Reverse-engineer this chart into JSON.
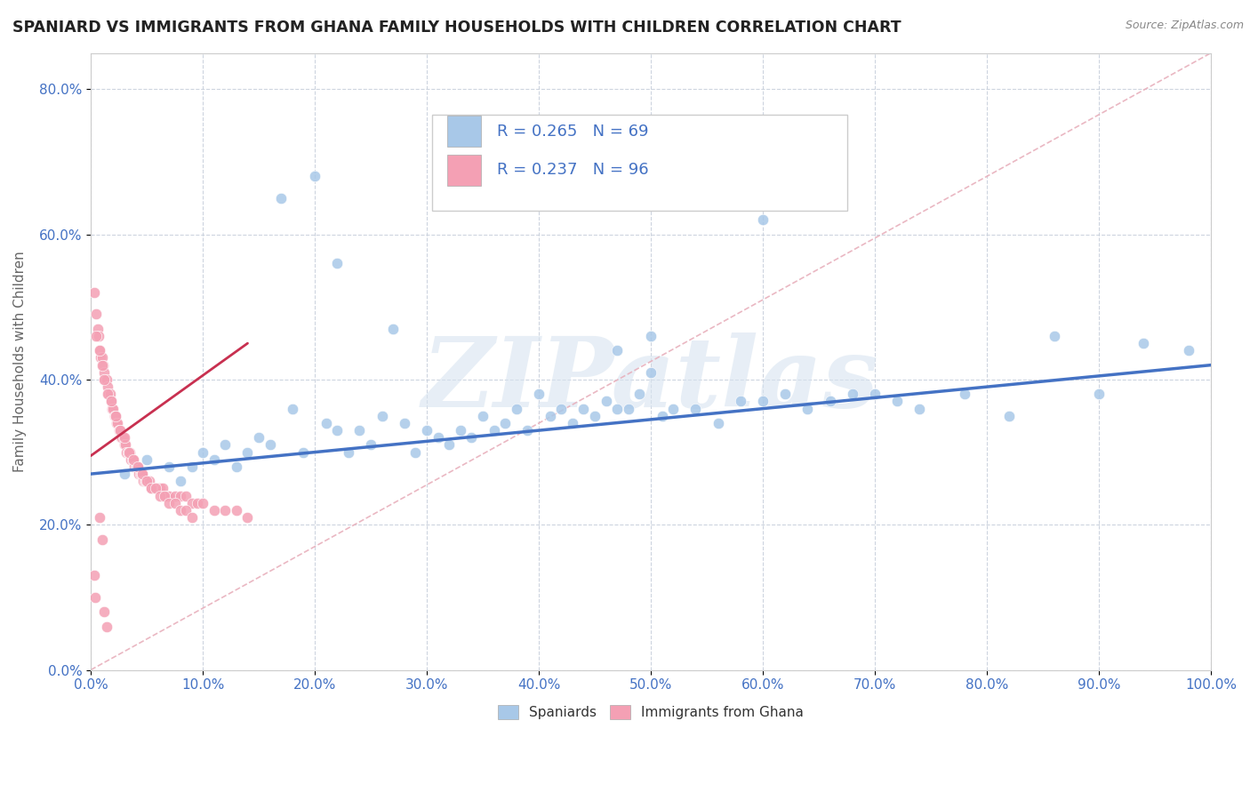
{
  "title": "SPANIARD VS IMMIGRANTS FROM GHANA FAMILY HOUSEHOLDS WITH CHILDREN CORRELATION CHART",
  "source": "Source: ZipAtlas.com",
  "ylabel": "Family Households with Children",
  "watermark": "ZIPatlas",
  "legend_blue_R": "R = 0.265",
  "legend_blue_N": "N = 69",
  "legend_pink_R": "R = 0.237",
  "legend_pink_N": "N = 96",
  "blue_color": "#a8c8e8",
  "blue_line_color": "#4472c4",
  "pink_color": "#f4a0b4",
  "pink_line_color": "#e06080",
  "axis_color": "#4472c4",
  "grid_color": "#c8d0dc",
  "xlim": [
    0.0,
    1.0
  ],
  "ylim": [
    0.0,
    0.85
  ],
  "xticks": [
    0.0,
    0.1,
    0.2,
    0.3,
    0.4,
    0.5,
    0.6,
    0.7,
    0.8,
    0.9,
    1.0
  ],
  "yticks": [
    0.0,
    0.2,
    0.4,
    0.6,
    0.8
  ],
  "blue_scatter_x": [
    0.03,
    0.05,
    0.07,
    0.08,
    0.09,
    0.1,
    0.11,
    0.12,
    0.13,
    0.14,
    0.15,
    0.16,
    0.17,
    0.18,
    0.19,
    0.2,
    0.21,
    0.22,
    0.23,
    0.24,
    0.25,
    0.26,
    0.28,
    0.29,
    0.3,
    0.31,
    0.32,
    0.33,
    0.34,
    0.35,
    0.36,
    0.37,
    0.38,
    0.39,
    0.4,
    0.41,
    0.42,
    0.43,
    0.44,
    0.45,
    0.46,
    0.47,
    0.48,
    0.49,
    0.5,
    0.51,
    0.52,
    0.54,
    0.56,
    0.58,
    0.6,
    0.62,
    0.64,
    0.66,
    0.68,
    0.7,
    0.72,
    0.74,
    0.78,
    0.82,
    0.86,
    0.9,
    0.94,
    0.98,
    0.22,
    0.27,
    0.47,
    0.5,
    0.6
  ],
  "blue_scatter_y": [
    0.27,
    0.29,
    0.28,
    0.26,
    0.28,
    0.3,
    0.29,
    0.31,
    0.28,
    0.3,
    0.32,
    0.31,
    0.65,
    0.36,
    0.3,
    0.68,
    0.34,
    0.33,
    0.3,
    0.33,
    0.31,
    0.35,
    0.34,
    0.3,
    0.33,
    0.32,
    0.31,
    0.33,
    0.32,
    0.35,
    0.33,
    0.34,
    0.36,
    0.33,
    0.38,
    0.35,
    0.36,
    0.34,
    0.36,
    0.35,
    0.37,
    0.36,
    0.36,
    0.38,
    0.46,
    0.35,
    0.36,
    0.36,
    0.34,
    0.37,
    0.37,
    0.38,
    0.36,
    0.37,
    0.38,
    0.38,
    0.37,
    0.36,
    0.38,
    0.35,
    0.46,
    0.38,
    0.45,
    0.44,
    0.56,
    0.47,
    0.44,
    0.41,
    0.62
  ],
  "pink_scatter_x": [
    0.003,
    0.005,
    0.006,
    0.007,
    0.008,
    0.009,
    0.01,
    0.011,
    0.012,
    0.013,
    0.014,
    0.015,
    0.016,
    0.017,
    0.018,
    0.019,
    0.02,
    0.021,
    0.022,
    0.023,
    0.024,
    0.025,
    0.026,
    0.027,
    0.028,
    0.029,
    0.03,
    0.031,
    0.032,
    0.033,
    0.034,
    0.035,
    0.036,
    0.037,
    0.038,
    0.039,
    0.04,
    0.041,
    0.042,
    0.043,
    0.044,
    0.045,
    0.046,
    0.047,
    0.048,
    0.049,
    0.05,
    0.052,
    0.054,
    0.056,
    0.058,
    0.06,
    0.062,
    0.064,
    0.066,
    0.068,
    0.07,
    0.075,
    0.08,
    0.085,
    0.09,
    0.095,
    0.1,
    0.11,
    0.12,
    0.13,
    0.14,
    0.005,
    0.008,
    0.01,
    0.012,
    0.015,
    0.018,
    0.022,
    0.026,
    0.03,
    0.034,
    0.038,
    0.042,
    0.046,
    0.05,
    0.054,
    0.058,
    0.062,
    0.066,
    0.07,
    0.075,
    0.08,
    0.085,
    0.09,
    0.003,
    0.004,
    0.008,
    0.01,
    0.012,
    0.014
  ],
  "pink_scatter_y": [
    0.52,
    0.49,
    0.47,
    0.46,
    0.44,
    0.43,
    0.43,
    0.42,
    0.41,
    0.4,
    0.4,
    0.39,
    0.38,
    0.38,
    0.37,
    0.36,
    0.36,
    0.35,
    0.35,
    0.34,
    0.34,
    0.33,
    0.33,
    0.32,
    0.32,
    0.32,
    0.31,
    0.31,
    0.3,
    0.3,
    0.3,
    0.3,
    0.29,
    0.29,
    0.29,
    0.28,
    0.28,
    0.28,
    0.28,
    0.27,
    0.27,
    0.27,
    0.27,
    0.26,
    0.26,
    0.26,
    0.26,
    0.26,
    0.25,
    0.25,
    0.25,
    0.25,
    0.25,
    0.25,
    0.24,
    0.24,
    0.24,
    0.24,
    0.24,
    0.24,
    0.23,
    0.23,
    0.23,
    0.22,
    0.22,
    0.22,
    0.21,
    0.46,
    0.44,
    0.42,
    0.4,
    0.38,
    0.37,
    0.35,
    0.33,
    0.32,
    0.3,
    0.29,
    0.28,
    0.27,
    0.26,
    0.25,
    0.25,
    0.24,
    0.24,
    0.23,
    0.23,
    0.22,
    0.22,
    0.21,
    0.13,
    0.1,
    0.21,
    0.18,
    0.08,
    0.06
  ],
  "blue_trend_x": [
    0.0,
    1.0
  ],
  "blue_trend_y": [
    0.27,
    0.42
  ],
  "pink_trend_x": [
    0.0,
    0.14
  ],
  "pink_trend_y": [
    0.295,
    0.45
  ],
  "ref_line_x": [
    0.0,
    1.0
  ],
  "ref_line_y": [
    0.0,
    0.85
  ]
}
